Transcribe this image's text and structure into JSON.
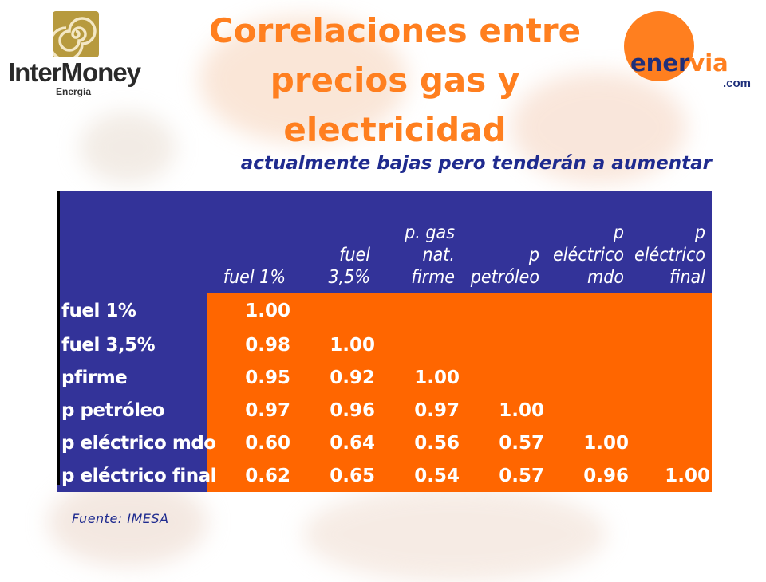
{
  "title": "Correlaciones entre precios gas y electricidad",
  "subtitle": "actualmente bajas pero tenderán a aumentar",
  "logos": {
    "left": {
      "name": "InterMoney",
      "sub": "Energía"
    },
    "right": {
      "prefix": "ener",
      "suffix": "via",
      "domain": ".com"
    }
  },
  "table": {
    "columns": [
      "fuel 1%",
      "fuel\n3,5%",
      "p. gas\nnat.\nfirme",
      "p\npetróleo",
      "p\neléctrico\nmdo",
      "p\neléctrico\nfinal"
    ],
    "rows": [
      {
        "label": "fuel 1%",
        "values": [
          "1.00",
          "",
          "",
          "",
          "",
          ""
        ]
      },
      {
        "label": "fuel 3,5%",
        "values": [
          "0.98",
          "1.00",
          "",
          "",
          "",
          ""
        ]
      },
      {
        "label": "pfirme",
        "values": [
          "0.95",
          "0.92",
          "1.00",
          "",
          "",
          ""
        ]
      },
      {
        "label": "p petróleo",
        "values": [
          "0.97",
          "0.96",
          "0.97",
          "1.00",
          "",
          ""
        ]
      },
      {
        "label": "p eléctrico mdo",
        "values": [
          "0.60",
          "0.64",
          "0.56",
          "0.57",
          "1.00",
          ""
        ]
      },
      {
        "label": "p eléctrico final",
        "values": [
          "0.62",
          "0.65",
          "0.54",
          "0.57",
          "0.96",
          "1.00"
        ]
      }
    ]
  },
  "source": "Fuente: IMESA",
  "colors": {
    "title": "#ff7f1f",
    "subtitle": "#1f2b8f",
    "header_bg": "#333399",
    "cell_bg": "#ff6600"
  }
}
